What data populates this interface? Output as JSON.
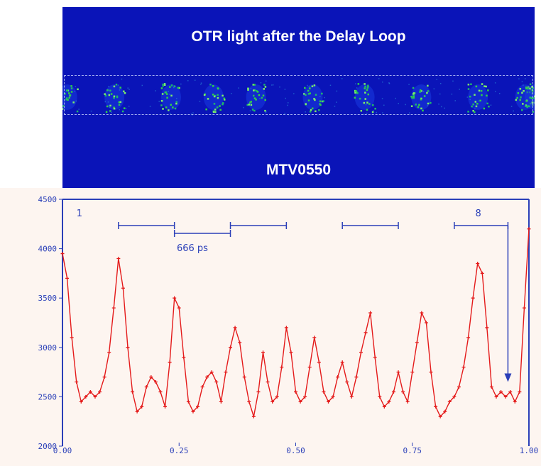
{
  "camera": {
    "title": "OTR light after the Delay Loop",
    "label": "MTV0550",
    "spots_x_frac": [
      0.01,
      0.11,
      0.23,
      0.32,
      0.41,
      0.53,
      0.64,
      0.76,
      0.88,
      0.98,
      1.0
    ],
    "spot_colors": [
      "#2fd14a",
      "#7cf06a",
      "#1fb86b"
    ]
  },
  "chart_data": {
    "type": "line",
    "title": "",
    "xlabel": "",
    "ylabel": "",
    "xlim": [
      0.0,
      1.0
    ],
    "ylim": [
      2000,
      4500
    ],
    "x_tick_labels": [
      "0.00",
      "0.25",
      "0.50",
      "0.75",
      "1.00"
    ],
    "x_ticks": [
      0.0,
      0.25,
      0.5,
      0.75,
      1.0
    ],
    "y_tick_labels": [
      "2000",
      "2500",
      "3000",
      "3500",
      "4000",
      "4500"
    ],
    "y_ticks": [
      2000,
      2500,
      3000,
      3500,
      4000,
      4500
    ],
    "line_color": "#e41a1a",
    "axis_color": "#2b3fb8",
    "series": [
      {
        "x": [
          0.0,
          0.01,
          0.02,
          0.03,
          0.04,
          0.05,
          0.06,
          0.07,
          0.08,
          0.09,
          0.1,
          0.11,
          0.12,
          0.13,
          0.14,
          0.15,
          0.16,
          0.17,
          0.18,
          0.19,
          0.2,
          0.21,
          0.22,
          0.23,
          0.24,
          0.25,
          0.26,
          0.27,
          0.28,
          0.29,
          0.3,
          0.31,
          0.32,
          0.33,
          0.34,
          0.35,
          0.36,
          0.37,
          0.38,
          0.39,
          0.4,
          0.41,
          0.42,
          0.43,
          0.44,
          0.45,
          0.46,
          0.47,
          0.48,
          0.49,
          0.5,
          0.51,
          0.52,
          0.53,
          0.54,
          0.55,
          0.56,
          0.57,
          0.58,
          0.59,
          0.6,
          0.61,
          0.62,
          0.63,
          0.64,
          0.65,
          0.66,
          0.67,
          0.68,
          0.69,
          0.7,
          0.71,
          0.72,
          0.73,
          0.74,
          0.75,
          0.76,
          0.77,
          0.78,
          0.79,
          0.8,
          0.81,
          0.82,
          0.83,
          0.84,
          0.85,
          0.86,
          0.87,
          0.88,
          0.89,
          0.9,
          0.91,
          0.92,
          0.93,
          0.94,
          0.95,
          0.96,
          0.97,
          0.98,
          0.99,
          1.0
        ],
        "values": [
          3950,
          3700,
          3100,
          2650,
          2450,
          2500,
          2550,
          2500,
          2550,
          2700,
          2950,
          3400,
          3900,
          3600,
          3000,
          2550,
          2350,
          2400,
          2600,
          2700,
          2650,
          2550,
          2400,
          2850,
          3500,
          3400,
          2900,
          2450,
          2350,
          2400,
          2600,
          2700,
          2750,
          2650,
          2450,
          2750,
          3000,
          3200,
          3050,
          2700,
          2450,
          2300,
          2550,
          2950,
          2650,
          2450,
          2500,
          2800,
          3200,
          2950,
          2550,
          2450,
          2500,
          2800,
          3100,
          2850,
          2550,
          2450,
          2500,
          2700,
          2850,
          2650,
          2500,
          2700,
          2950,
          3150,
          3350,
          2900,
          2500,
          2400,
          2450,
          2550,
          2750,
          2550,
          2450,
          2750,
          3050,
          3350,
          3250,
          2750,
          2400,
          2300,
          2350,
          2450,
          2500,
          2600,
          2800,
          3100,
          3500,
          3850,
          3750,
          3200,
          2600,
          2500,
          2550,
          2500,
          2550,
          2450,
          2550,
          3400,
          4200
        ]
      }
    ],
    "annotations": {
      "label_1": "1",
      "label_8": "8",
      "spacing_label": "666 ps"
    }
  }
}
